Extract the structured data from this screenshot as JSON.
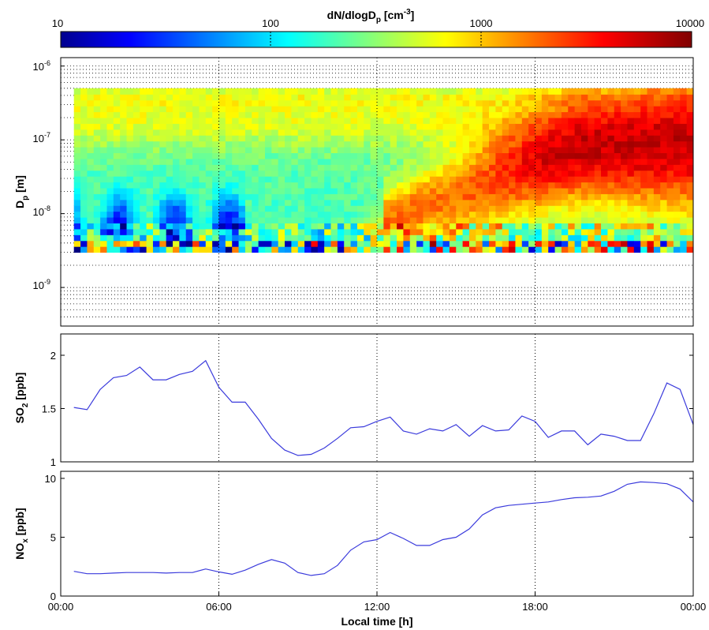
{
  "chart_data": [
    {
      "type": "heatmap",
      "colorbar": {
        "label_main": "dN/dlogD",
        "label_sub": "p",
        "label_unit_pre": " [cm",
        "label_unit_sup": "-3",
        "label_unit_post": "]",
        "ticks": [
          "10",
          "100",
          "1000",
          "10000"
        ],
        "log_range": [
          10,
          10000
        ],
        "colormap": "jet"
      },
      "ylabel_main": "D",
      "ylabel_sub": "p",
      "ylabel_unit": " [m]",
      "yscale": "log",
      "ylim": [
        3e-10,
        1.3e-06
      ],
      "yticks": [
        {
          "base": "10",
          "exp": "-6",
          "value": 1e-06
        },
        {
          "base": "10",
          "exp": "-7",
          "value": 1e-07
        },
        {
          "base": "10",
          "exp": "-8",
          "value": 1e-08
        },
        {
          "base": "10",
          "exp": "-9",
          "value": 1e-09
        }
      ],
      "xlim": [
        0,
        24
      ],
      "data_extent": {
        "x": [
          0.5,
          24
        ],
        "diameter_range": [
          3e-09,
          5e-07
        ]
      },
      "time_resolution_h": 0.25,
      "size_bins": 28,
      "grid": "on",
      "description_of_values": "Log10 number concentration ~1-4; background ~2.5-3 above 1e-7 m; new particle formation event starting ~12:00 at 1e-8 m growing to ~5e-8 m by evening"
    },
    {
      "type": "line",
      "ylabel_main": "SO",
      "ylabel_sub": "2",
      "ylabel_unit": " [ppb]",
      "ylim": [
        1,
        2.2
      ],
      "yticks": [
        "1",
        "1.5",
        "2"
      ],
      "xlim": [
        0,
        24
      ],
      "color": "#3b3bdc",
      "grid": "on",
      "series": [
        {
          "x": [
            0.5,
            1.0,
            1.5,
            2.0,
            2.5,
            3.0,
            3.5,
            4.0,
            4.5,
            5.0,
            5.5,
            6.0,
            6.5,
            7.0,
            7.5,
            8.0,
            8.5,
            9.0,
            9.5,
            10.0,
            10.5,
            11.0,
            11.5,
            12.0,
            12.5,
            13.0,
            13.5,
            14.0,
            14.5,
            15.0,
            15.5,
            16.0,
            16.5,
            17.0,
            17.5,
            18.0,
            18.5,
            19.0,
            19.5,
            20.0,
            20.5,
            21.0,
            21.5,
            22.0,
            22.5,
            23.0,
            23.5,
            24.0
          ],
          "y": [
            1.51,
            1.49,
            1.68,
            1.79,
            1.81,
            1.89,
            1.77,
            1.77,
            1.82,
            1.85,
            1.95,
            1.7,
            1.56,
            1.56,
            1.4,
            1.22,
            1.11,
            1.06,
            1.07,
            1.13,
            1.22,
            1.32,
            1.33,
            1.38,
            1.42,
            1.29,
            1.26,
            1.31,
            1.29,
            1.35,
            1.24,
            1.34,
            1.29,
            1.3,
            1.43,
            1.38,
            1.23,
            1.29,
            1.29,
            1.16,
            1.26,
            1.24,
            1.2,
            1.2,
            1.45,
            1.74,
            1.68,
            1.35
          ]
        }
      ]
    },
    {
      "type": "line",
      "ylabel_main": "NO",
      "ylabel_sub": "x",
      "ylabel_unit": " [ppb]",
      "ylim": [
        0,
        10.6
      ],
      "yticks": [
        "0",
        "5",
        "10"
      ],
      "xlim": [
        0,
        24
      ],
      "xticks": [
        "00:00",
        "06:00",
        "12:00",
        "18:00",
        "00:00"
      ],
      "xlabel": "Local time [h]",
      "color": "#3b3bdc",
      "grid": "on",
      "series": [
        {
          "x": [
            0.5,
            1.0,
            1.5,
            2.0,
            2.5,
            3.0,
            3.5,
            4.0,
            4.5,
            5.0,
            5.5,
            6.0,
            6.5,
            7.0,
            7.5,
            8.0,
            8.5,
            9.0,
            9.5,
            10.0,
            10.5,
            11.0,
            11.5,
            12.0,
            12.5,
            13.0,
            13.5,
            14.0,
            14.5,
            15.0,
            15.5,
            16.0,
            16.5,
            17.0,
            17.5,
            18.0,
            18.5,
            19.0,
            19.5,
            20.0,
            20.5,
            21.0,
            21.5,
            22.0,
            22.5,
            23.0,
            23.5,
            24.0
          ],
          "y": [
            2.1,
            1.9,
            1.9,
            1.95,
            2.0,
            2.0,
            2.0,
            1.95,
            2.0,
            2.0,
            2.3,
            2.05,
            1.85,
            2.2,
            2.7,
            3.1,
            2.8,
            2.0,
            1.75,
            1.9,
            2.6,
            3.9,
            4.6,
            4.8,
            5.4,
            4.9,
            4.3,
            4.3,
            4.8,
            5.0,
            5.7,
            6.9,
            7.5,
            7.7,
            7.8,
            7.9,
            8.0,
            8.2,
            8.35,
            8.4,
            8.5,
            8.9,
            9.5,
            9.7,
            9.65,
            9.55,
            9.1,
            8.0
          ]
        }
      ]
    }
  ]
}
